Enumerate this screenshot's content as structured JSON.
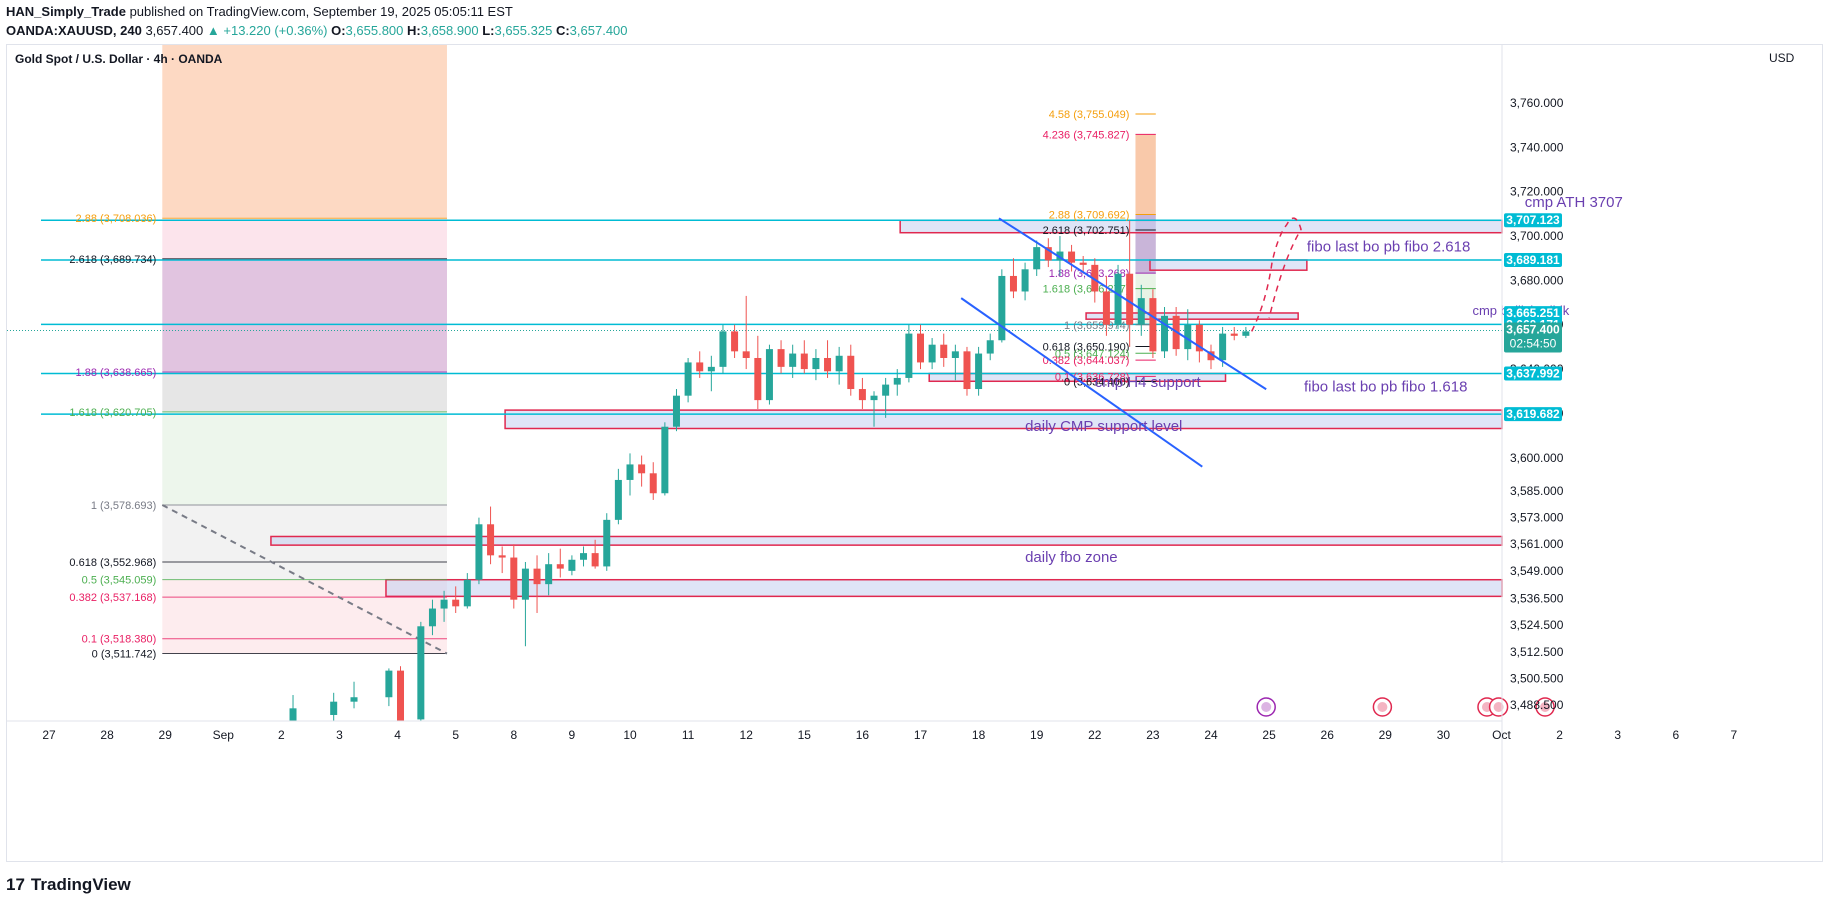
{
  "header": {
    "line1_user": "HAN_Simply_Trade",
    "line1_rest": "published on TradingView.com, September 19, 2025 05:05:11 EST",
    "line2_symbol": "OANDA:XAUUSD, 240",
    "line2_price": "3,657.400",
    "line2_change": "▲ +13.220 (+0.36%)",
    "line2_o_label": "O:",
    "line2_o": "3,655.800",
    "line2_h_label": "H:",
    "line2_h": "3,658.900",
    "line2_l_label": "L:",
    "line2_l": "3,655.325",
    "line2_c_label": "C:",
    "line2_c": "3,657.400"
  },
  "legend": {
    "title": "Gold Spot / U.S. Dollar · 4h · OANDA"
  },
  "currency": "USD",
  "footer": {
    "logo_mark": "17",
    "brand": "TradingView"
  },
  "colors": {
    "up": "#26a69a",
    "down": "#ef5350",
    "hline": "#00bcd4",
    "zone_fill": "#c5cff0",
    "zone_border": "#e0284f",
    "trend": "#2962ff",
    "annotation": "#6a3fb0",
    "price_tag": "#26a69a"
  },
  "chart_data": {
    "type": "candlestick",
    "symbol": "OANDA:XAUUSD",
    "timeframe": "4h",
    "ylim": [
      3480,
      3785
    ],
    "x_ticks": [
      "27",
      "28",
      "29",
      "Sep",
      "2",
      "3",
      "4",
      "5",
      "8",
      "9",
      "10",
      "11",
      "12",
      "15",
      "16",
      "17",
      "18",
      "19",
      "22",
      "23",
      "24",
      "25",
      "26",
      "29",
      "30",
      "Oct",
      "2",
      "3",
      "6",
      "7"
    ],
    "y_ticks": [
      "3,760.000",
      "3,740.000",
      "3,720.000",
      "3,700.000",
      "3,680.000",
      "3,660.000",
      "3,640.000",
      "3,620.000",
      "3,600.000",
      "3,585.000",
      "3,573.000",
      "3,561.000",
      "3,549.000",
      "3,536.500",
      "3,524.500",
      "3,512.500",
      "3,500.500",
      "3,488.500"
    ],
    "price_tags": [
      {
        "value": "3,707.123",
        "price": 3707.123,
        "color": "#00bcd4"
      },
      {
        "value": "3,689.181",
        "price": 3689.181,
        "color": "#00bcd4"
      },
      {
        "value": "3,665.251",
        "price": 3665.251,
        "color": "#00bcd4"
      },
      {
        "value": "3,660.171",
        "price": 3660.171,
        "color": "#00bcd4"
      },
      {
        "value": "3,657.400",
        "price": 3657.4,
        "color": "#26a69a",
        "countdown": "02:54:50"
      },
      {
        "value": "3,637.992",
        "price": 3637.992,
        "color": "#00bcd4"
      },
      {
        "value": "3,619.682",
        "price": 3619.682,
        "color": "#00bcd4"
      }
    ],
    "annotations": [
      {
        "text": "cmp ATH 3707",
        "x_day": 23.4,
        "price": 3713
      },
      {
        "text": "fibo last bo pb fibo 2.618",
        "x_day": 19.65,
        "price": 3693
      },
      {
        "text": "cmp bullish rdblk",
        "x_day": 22.5,
        "price": 3664.5,
        "small": true
      },
      {
        "text": "cmp H4 support",
        "x_day": 16.0,
        "price": 3632
      },
      {
        "text": "fibo last bo pb fibo 1.618",
        "x_day": 19.6,
        "price": 3630
      },
      {
        "text": "daily CMP support level",
        "x_day": 14.8,
        "price": 3612
      },
      {
        "text": "daily fbo zone",
        "x_day": 14.8,
        "price": 3553
      }
    ],
    "left_fib": [
      {
        "label": "2.88 (3,708.036)",
        "price": 3708.036,
        "color": "#f59e0b"
      },
      {
        "label": "2.618 (3,689.734)",
        "price": 3689.734,
        "color": "#131722"
      },
      {
        "label": "1.88 (3,638.665)",
        "price": 3638.665,
        "color": "#9c27b0"
      },
      {
        "label": "1.618 (3,620.705)",
        "price": 3620.705,
        "color": "#4caf50"
      },
      {
        "label": "1 (3,578.693)",
        "price": 3578.693,
        "color": "#787b86"
      },
      {
        "label": "0.618 (3,552.968)",
        "price": 3552.968,
        "color": "#131722"
      },
      {
        "label": "0.5 (3,545.059)",
        "price": 3545.059,
        "color": "#4caf50"
      },
      {
        "label": "0.382 (3,537.168)",
        "price": 3537.168,
        "color": "#e91e63"
      },
      {
        "label": "0.1 (3,518.380)",
        "price": 3518.38,
        "color": "#e91e63"
      },
      {
        "label": "0 (3,511.742)",
        "price": 3511.742,
        "color": "#131722"
      }
    ],
    "right_fib": [
      {
        "label": "4.58 (3,755.049)",
        "price": 3755.049,
        "color": "#f59e0b"
      },
      {
        "label": "4.236 (3,745.827)",
        "price": 3745.827,
        "color": "#e91e63"
      },
      {
        "label": "2.88 (3,709.692)",
        "price": 3709.692,
        "color": "#f59e0b"
      },
      {
        "label": "2.618 (3,702.751)",
        "price": 3702.751,
        "color": "#131722"
      },
      {
        "label": "1.88 (3,683.268)",
        "price": 3683.268,
        "color": "#9c27b0"
      },
      {
        "label": "1.618 (3,676.277)",
        "price": 3676.277,
        "color": "#4caf50"
      },
      {
        "label": "1 (3,659.974)",
        "price": 3659.974,
        "color": "#787b86"
      },
      {
        "label": "0.618 (3,650.190)",
        "price": 3650.19,
        "color": "#131722"
      },
      {
        "label": "0.5 (3,647.124)",
        "price": 3647.124,
        "color": "#4caf50"
      },
      {
        "label": "0.382 (3,644.037)",
        "price": 3644.037,
        "color": "#e91e63"
      },
      {
        "label": "0.1 (3,636.728)",
        "price": 3636.728,
        "color": "#e91e63"
      },
      {
        "label": "0 (3,634.400)",
        "price": 3634.4,
        "color": "#131722"
      }
    ],
    "hlines": [
      3707.123,
      3689.181,
      3660.171,
      3637.992,
      3619.682
    ],
    "candles": [
      {
        "d": 2.2,
        "o": 3480,
        "h": 3493,
        "l": 3478,
        "c": 3487
      },
      {
        "d": 2.9,
        "o": 3484,
        "h": 3494,
        "l": 3480,
        "c": 3490
      },
      {
        "d": 3.25,
        "o": 3490,
        "h": 3499,
        "l": 3487,
        "c": 3492
      },
      {
        "d": 3.85,
        "o": 3492,
        "h": 3505,
        "l": 3488,
        "c": 3504
      },
      {
        "d": 4.05,
        "o": 3504,
        "h": 3506,
        "l": 3480,
        "c": 3480
      },
      {
        "d": 4.4,
        "o": 3482,
        "h": 3526,
        "l": 3480,
        "c": 3524
      },
      {
        "d": 4.6,
        "o": 3524,
        "h": 3536,
        "l": 3520,
        "c": 3532
      },
      {
        "d": 4.8,
        "o": 3532,
        "h": 3540,
        "l": 3526,
        "c": 3536
      },
      {
        "d": 5.0,
        "o": 3536,
        "h": 3542,
        "l": 3530,
        "c": 3533
      },
      {
        "d": 5.2,
        "o": 3533,
        "h": 3548,
        "l": 3532,
        "c": 3545
      },
      {
        "d": 5.4,
        "o": 3545,
        "h": 3573,
        "l": 3543,
        "c": 3570
      },
      {
        "d": 5.6,
        "o": 3570,
        "h": 3578,
        "l": 3552,
        "c": 3556
      },
      {
        "d": 5.8,
        "o": 3556,
        "h": 3560,
        "l": 3548,
        "c": 3555
      },
      {
        "d": 6.0,
        "o": 3555,
        "h": 3561,
        "l": 3532,
        "c": 3536
      },
      {
        "d": 6.2,
        "o": 3536,
        "h": 3553,
        "l": 3515,
        "c": 3550
      },
      {
        "d": 6.4,
        "o": 3550,
        "h": 3556,
        "l": 3530,
        "c": 3543
      },
      {
        "d": 6.6,
        "o": 3543,
        "h": 3557,
        "l": 3538,
        "c": 3552
      },
      {
        "d": 6.8,
        "o": 3552,
        "h": 3559,
        "l": 3546,
        "c": 3550
      },
      {
        "d": 7.0,
        "o": 3549,
        "h": 3556,
        "l": 3547,
        "c": 3554
      },
      {
        "d": 7.2,
        "o": 3554,
        "h": 3560,
        "l": 3551,
        "c": 3557
      },
      {
        "d": 7.4,
        "o": 3557,
        "h": 3563,
        "l": 3550,
        "c": 3551
      },
      {
        "d": 7.6,
        "o": 3551,
        "h": 3575,
        "l": 3549,
        "c": 3572
      },
      {
        "d": 7.8,
        "o": 3572,
        "h": 3595,
        "l": 3570,
        "c": 3590
      },
      {
        "d": 8.0,
        "o": 3590,
        "h": 3602,
        "l": 3583,
        "c": 3597
      },
      {
        "d": 8.2,
        "o": 3597,
        "h": 3601,
        "l": 3587,
        "c": 3593
      },
      {
        "d": 8.4,
        "o": 3593,
        "h": 3598,
        "l": 3581,
        "c": 3584
      },
      {
        "d": 8.6,
        "o": 3584,
        "h": 3616,
        "l": 3583,
        "c": 3614
      },
      {
        "d": 8.8,
        "o": 3614,
        "h": 3631,
        "l": 3612,
        "c": 3628
      },
      {
        "d": 9.0,
        "o": 3628,
        "h": 3645,
        "l": 3625,
        "c": 3643
      },
      {
        "d": 9.2,
        "o": 3643,
        "h": 3648,
        "l": 3636,
        "c": 3639
      },
      {
        "d": 9.4,
        "o": 3639,
        "h": 3646,
        "l": 3630,
        "c": 3641
      },
      {
        "d": 9.6,
        "o": 3641,
        "h": 3660,
        "l": 3638,
        "c": 3657
      },
      {
        "d": 9.8,
        "o": 3657,
        "h": 3660,
        "l": 3645,
        "c": 3648
      },
      {
        "d": 10.0,
        "o": 3648,
        "h": 3673,
        "l": 3640,
        "c": 3645
      },
      {
        "d": 10.2,
        "o": 3645,
        "h": 3655,
        "l": 3622,
        "c": 3626
      },
      {
        "d": 10.4,
        "o": 3626,
        "h": 3651,
        "l": 3624,
        "c": 3649
      },
      {
        "d": 10.6,
        "o": 3649,
        "h": 3653,
        "l": 3638,
        "c": 3641
      },
      {
        "d": 10.8,
        "o": 3641,
        "h": 3651,
        "l": 3636,
        "c": 3647
      },
      {
        "d": 11.0,
        "o": 3647,
        "h": 3653,
        "l": 3638,
        "c": 3640
      },
      {
        "d": 11.2,
        "o": 3640,
        "h": 3649,
        "l": 3635,
        "c": 3645
      },
      {
        "d": 11.4,
        "o": 3645,
        "h": 3653,
        "l": 3636,
        "c": 3639
      },
      {
        "d": 11.6,
        "o": 3639,
        "h": 3650,
        "l": 3633,
        "c": 3646
      },
      {
        "d": 11.8,
        "o": 3646,
        "h": 3651,
        "l": 3628,
        "c": 3631
      },
      {
        "d": 12.0,
        "o": 3631,
        "h": 3636,
        "l": 3622,
        "c": 3626
      },
      {
        "d": 12.2,
        "o": 3626,
        "h": 3630,
        "l": 3614,
        "c": 3628
      },
      {
        "d": 12.4,
        "o": 3628,
        "h": 3636,
        "l": 3618,
        "c": 3633
      },
      {
        "d": 12.6,
        "o": 3633,
        "h": 3640,
        "l": 3628,
        "c": 3636
      },
      {
        "d": 12.8,
        "o": 3636,
        "h": 3660,
        "l": 3634,
        "c": 3656
      },
      {
        "d": 13.0,
        "o": 3656,
        "h": 3660,
        "l": 3640,
        "c": 3643
      },
      {
        "d": 13.2,
        "o": 3643,
        "h": 3654,
        "l": 3640,
        "c": 3651
      },
      {
        "d": 13.4,
        "o": 3651,
        "h": 3656,
        "l": 3641,
        "c": 3645
      },
      {
        "d": 13.6,
        "o": 3645,
        "h": 3651,
        "l": 3635,
        "c": 3648
      },
      {
        "d": 13.8,
        "o": 3648,
        "h": 3650,
        "l": 3628,
        "c": 3631
      },
      {
        "d": 14.0,
        "o": 3631,
        "h": 3650,
        "l": 3628,
        "c": 3647
      },
      {
        "d": 14.2,
        "o": 3647,
        "h": 3656,
        "l": 3644,
        "c": 3653
      },
      {
        "d": 14.4,
        "o": 3653,
        "h": 3685,
        "l": 3652,
        "c": 3682
      },
      {
        "d": 14.6,
        "o": 3682,
        "h": 3690,
        "l": 3672,
        "c": 3675
      },
      {
        "d": 14.8,
        "o": 3675,
        "h": 3688,
        "l": 3671,
        "c": 3685
      },
      {
        "d": 15.0,
        "o": 3685,
        "h": 3698,
        "l": 3682,
        "c": 3695
      },
      {
        "d": 15.2,
        "o": 3695,
        "h": 3699,
        "l": 3686,
        "c": 3689
      },
      {
        "d": 15.4,
        "o": 3689,
        "h": 3700,
        "l": 3682,
        "c": 3693
      },
      {
        "d": 15.6,
        "o": 3693,
        "h": 3696,
        "l": 3684,
        "c": 3688
      },
      {
        "d": 15.8,
        "o": 3688,
        "h": 3691,
        "l": 3683,
        "c": 3687
      },
      {
        "d": 16.0,
        "o": 3687,
        "h": 3690,
        "l": 3670,
        "c": 3675
      },
      {
        "d": 16.2,
        "o": 3675,
        "h": 3682,
        "l": 3655,
        "c": 3660
      },
      {
        "d": 16.4,
        "o": 3660,
        "h": 3687,
        "l": 3658,
        "c": 3683
      },
      {
        "d": 16.6,
        "o": 3683,
        "h": 3707,
        "l": 3650,
        "c": 3660
      },
      {
        "d": 16.8,
        "o": 3660,
        "h": 3678,
        "l": 3655,
        "c": 3672
      },
      {
        "d": 17.0,
        "o": 3672,
        "h": 3676,
        "l": 3645,
        "c": 3648
      },
      {
        "d": 17.2,
        "o": 3648,
        "h": 3668,
        "l": 3645,
        "c": 3664
      },
      {
        "d": 17.4,
        "o": 3664,
        "h": 3668,
        "l": 3646,
        "c": 3649
      },
      {
        "d": 17.6,
        "o": 3649,
        "h": 3667,
        "l": 3644,
        "c": 3660
      },
      {
        "d": 17.8,
        "o": 3660,
        "h": 3662,
        "l": 3643,
        "c": 3648
      },
      {
        "d": 18.0,
        "o": 3648,
        "h": 3651,
        "l": 3640,
        "c": 3644
      },
      {
        "d": 18.2,
        "o": 3644,
        "h": 3659,
        "l": 3641,
        "c": 3656
      },
      {
        "d": 18.4,
        "o": 3656,
        "h": 3659,
        "l": 3653,
        "c": 3655
      },
      {
        "d": 18.6,
        "o": 3655,
        "h": 3659,
        "l": 3654,
        "c": 3657
      }
    ]
  }
}
